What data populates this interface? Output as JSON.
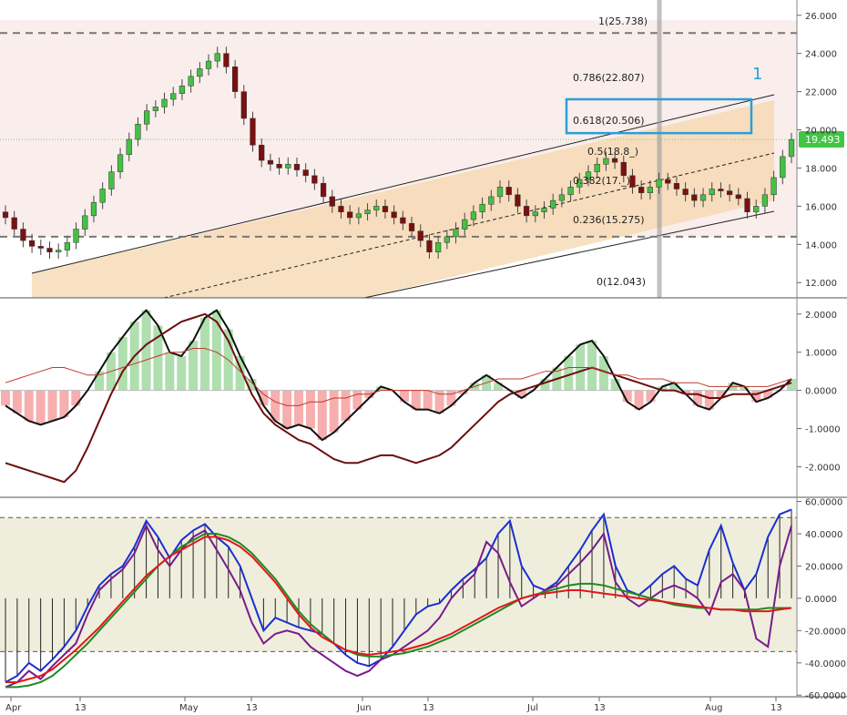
{
  "colors": {
    "background": "#ffffff",
    "grid": "#e6e6e6",
    "price_zone_fill": "#f7e7e2",
    "channel_fill": "#f6d7ad",
    "bollinger_fill": "#d9d7ef",
    "bullish_candle": "#44c144",
    "bearish_candle": "#7a1010",
    "blue_line": "#1a2fd1",
    "red_line": "#e3161b",
    "highlight_box": "#2a9fd8",
    "current_price_tag": "#43c443",
    "fib_dash": "#777777",
    "hist_green": "#6fc46f",
    "hist_red": "#f26d6d",
    "osc_zone_fill": "#efeedd",
    "purple_line": "#7a1a8c",
    "green_line": "#1f8a1f"
  },
  "annotations": {
    "fib_labels": [
      "1(25.738)",
      "0.786(22.807)",
      "0.618(20.506)",
      "0.5(18.8_)",
      "0.382(17._)",
      "0.236(15.275)",
      "0(12.043)"
    ],
    "current_price": "19.493",
    "handwritten_mark": "1"
  },
  "x_axis": {
    "ticks": [
      "Apr",
      "13",
      "May",
      "13",
      "Jun",
      "13",
      "Jul",
      "13",
      "Aug",
      "13"
    ]
  },
  "chart_data": [
    {
      "type": "candlestick",
      "title": "",
      "y_ticks": [
        "12.000",
        "14.000",
        "16.000",
        "18.000",
        "20.000",
        "22.000",
        "24.000",
        "26.000"
      ],
      "ylim": [
        11.2,
        26.8
      ],
      "grid": true,
      "series": [
        {
          "name": "price",
          "close": [
            15.4,
            14.8,
            14.2,
            13.9,
            13.8,
            13.6,
            13.7,
            14.1,
            14.8,
            15.5,
            16.2,
            16.9,
            17.8,
            18.7,
            19.5,
            20.3,
            21.0,
            21.2,
            21.6,
            21.9,
            22.3,
            22.8,
            23.2,
            23.6,
            24.0,
            23.3,
            22.0,
            20.6,
            19.2,
            18.4,
            18.2,
            18.0,
            18.2,
            17.9,
            17.6,
            17.2,
            16.5,
            16.0,
            15.7,
            15.4,
            15.6,
            15.8,
            16.0,
            15.7,
            15.4,
            15.1,
            14.7,
            14.2,
            13.6,
            14.1,
            14.4,
            14.8,
            15.3,
            15.7,
            16.1,
            16.5,
            17.0,
            16.6,
            16.0,
            15.5,
            15.7,
            15.9,
            16.3,
            16.6,
            17.0,
            17.4,
            17.8,
            18.2,
            18.5,
            18.3,
            17.6,
            17.0,
            16.7,
            17.0,
            17.4,
            17.2,
            16.9,
            16.6,
            16.3,
            16.6,
            16.9,
            16.8,
            16.6,
            16.4,
            15.7,
            16.0,
            16.6,
            17.5,
            18.6,
            19.493
          ]
        }
      ],
      "fibonacci": [
        {
          "level": "1",
          "value": 25.738
        },
        {
          "level": "0.786",
          "value": 22.807
        },
        {
          "level": "0.618",
          "value": 20.506
        },
        {
          "level": "0.5",
          "value": 18.89
        },
        {
          "level": "0.382",
          "value": 17.27
        },
        {
          "level": "0.236",
          "value": 15.275
        },
        {
          "level": "0",
          "value": 12.043
        }
      ]
    },
    {
      "type": "line",
      "title": "",
      "y_ticks": [
        "2.0000",
        "1.0000",
        "0.0000",
        "-1.0000",
        "-2.0000"
      ],
      "ylim": [
        -2.8,
        2.4
      ],
      "series": [
        {
          "name": "",
          "values": [
            -0.4,
            -0.6,
            -0.8,
            -0.9,
            -0.8,
            -0.7,
            -0.4,
            0.0,
            0.5,
            1.0,
            1.4,
            1.8,
            2.1,
            1.7,
            1.0,
            0.9,
            1.3,
            1.9,
            2.1,
            1.6,
            0.9,
            0.3,
            -0.4,
            -0.8,
            -1.0,
            -0.9,
            -1.0,
            -1.3,
            -1.1,
            -0.8,
            -0.5,
            -0.2,
            0.1,
            0.0,
            -0.3,
            -0.5,
            -0.5,
            -0.6,
            -0.4,
            -0.1,
            0.2,
            0.4,
            0.2,
            0.0,
            -0.2,
            0.0,
            0.3,
            0.6,
            0.9,
            1.2,
            1.3,
            0.9,
            0.3,
            -0.3,
            -0.5,
            -0.3,
            0.1,
            0.2,
            -0.1,
            -0.4,
            -0.5,
            -0.2,
            0.2,
            0.1,
            -0.3,
            -0.2,
            0.0,
            0.3
          ]
        },
        {
          "name": "",
          "values": [
            -1.9,
            -2.0,
            -2.1,
            -2.2,
            -2.3,
            -2.4,
            -2.1,
            -1.5,
            -0.8,
            -0.1,
            0.5,
            0.9,
            1.2,
            1.4,
            1.6,
            1.8,
            1.9,
            2.0,
            1.8,
            1.3,
            0.6,
            -0.1,
            -0.6,
            -0.9,
            -1.1,
            -1.3,
            -1.4,
            -1.6,
            -1.8,
            -1.9,
            -1.9,
            -1.8,
            -1.7,
            -1.7,
            -1.8,
            -1.9,
            -1.8,
            -1.7,
            -1.5,
            -1.2,
            -0.9,
            -0.6,
            -0.3,
            -0.1,
            0.0,
            0.1,
            0.2,
            0.3,
            0.4,
            0.5,
            0.6,
            0.5,
            0.4,
            0.3,
            0.2,
            0.1,
            0.0,
            0.0,
            -0.1,
            -0.1,
            -0.2,
            -0.2,
            -0.1,
            -0.1,
            -0.1,
            0.0,
            0.1,
            0.2
          ]
        },
        {
          "name": "",
          "values": [
            0.2,
            0.3,
            0.4,
            0.5,
            0.6,
            0.6,
            0.5,
            0.4,
            0.4,
            0.5,
            0.6,
            0.7,
            0.8,
            0.9,
            1.0,
            1.0,
            1.1,
            1.1,
            1.0,
            0.8,
            0.5,
            0.2,
            -0.1,
            -0.3,
            -0.4,
            -0.4,
            -0.3,
            -0.3,
            -0.2,
            -0.2,
            -0.1,
            -0.1,
            0.0,
            0.0,
            0.0,
            0.0,
            0.0,
            -0.1,
            -0.1,
            0.0,
            0.1,
            0.2,
            0.3,
            0.3,
            0.3,
            0.4,
            0.5,
            0.5,
            0.6,
            0.6,
            0.6,
            0.5,
            0.4,
            0.4,
            0.3,
            0.3,
            0.3,
            0.2,
            0.2,
            0.2,
            0.1,
            0.1,
            0.1,
            0.1,
            0.1,
            0.1,
            0.2,
            0.3
          ]
        }
      ]
    },
    {
      "type": "line",
      "title": "",
      "y_ticks": [
        "60.0000",
        "40.0000",
        "20.0000",
        "0.0000",
        "-20.0000",
        "-40.0000",
        "-60.0000"
      ],
      "ylim": [
        -61,
        62
      ],
      "series": [
        {
          "name": "",
          "values": [
            -52,
            -48,
            -40,
            -45,
            -38,
            -30,
            -20,
            -5,
            8,
            15,
            20,
            32,
            48,
            38,
            25,
            36,
            42,
            46,
            38,
            32,
            20,
            0,
            -20,
            -12,
            -15,
            -18,
            -20,
            -22,
            -28,
            -35,
            -40,
            -42,
            -38,
            -30,
            -20,
            -10,
            -5,
            -3,
            5,
            12,
            18,
            25,
            40,
            48,
            20,
            8,
            5,
            10,
            20,
            30,
            42,
            52,
            20,
            5,
            2,
            8,
            15,
            20,
            12,
            8,
            30,
            45,
            22,
            5,
            15,
            38,
            52,
            55
          ]
        },
        {
          "name": "",
          "values": [
            -55,
            -52,
            -45,
            -50,
            -42,
            -35,
            -28,
            -10,
            5,
            12,
            18,
            28,
            45,
            30,
            20,
            30,
            38,
            42,
            30,
            18,
            5,
            -15,
            -28,
            -22,
            -20,
            -22,
            -30,
            -35,
            -40,
            -45,
            -48,
            -45,
            -38,
            -35,
            -30,
            -25,
            -20,
            -12,
            0,
            8,
            15,
            35,
            28,
            10,
            -5,
            0,
            5,
            8,
            15,
            22,
            30,
            40,
            10,
            0,
            -5,
            0,
            5,
            8,
            5,
            0,
            -10,
            10,
            15,
            5,
            -25,
            -30,
            20,
            45
          ]
        },
        {
          "name": "",
          "values": [
            -55,
            -55,
            -54,
            -52,
            -48,
            -42,
            -35,
            -28,
            -20,
            -12,
            -4,
            4,
            12,
            20,
            26,
            32,
            36,
            40,
            40,
            38,
            34,
            28,
            20,
            12,
            2,
            -8,
            -16,
            -22,
            -28,
            -32,
            -35,
            -36,
            -36,
            -35,
            -34,
            -32,
            -30,
            -27,
            -24,
            -20,
            -16,
            -12,
            -8,
            -4,
            0,
            2,
            4,
            6,
            8,
            9,
            9,
            8,
            6,
            4,
            2,
            0,
            -2,
            -4,
            -5,
            -6,
            -6,
            -7,
            -7,
            -7,
            -7,
            -6,
            -6,
            -6
          ]
        },
        {
          "name": "",
          "values": [
            -52,
            -52,
            -50,
            -48,
            -44,
            -38,
            -32,
            -25,
            -18,
            -10,
            -2,
            6,
            14,
            20,
            26,
            30,
            34,
            38,
            38,
            36,
            32,
            26,
            18,
            10,
            0,
            -10,
            -18,
            -24,
            -28,
            -32,
            -34,
            -35,
            -34,
            -33,
            -32,
            -30,
            -28,
            -25,
            -22,
            -18,
            -14,
            -10,
            -6,
            -3,
            0,
            2,
            3,
            4,
            5,
            5,
            4,
            3,
            2,
            1,
            0,
            -1,
            -2,
            -3,
            -4,
            -5,
            -6,
            -7,
            -7,
            -8,
            -8,
            -8,
            -7,
            -6
          ]
        }
      ],
      "dashed_levels": [
        50,
        -33
      ]
    }
  ]
}
